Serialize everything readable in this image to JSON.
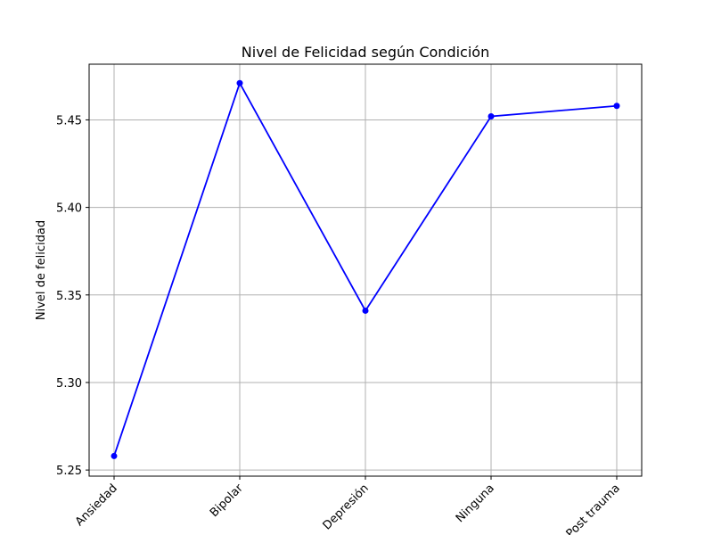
{
  "chart_data": {
    "type": "line",
    "title": "Nivel de Felicidad según Condición",
    "xlabel": "",
    "ylabel": "Nivel de felicidad",
    "categories": [
      "Ansiedad",
      "Bipolar",
      "Depresión",
      "Ninguna",
      "Post trauma"
    ],
    "series": [
      {
        "values": [
          5.258,
          5.471,
          5.341,
          5.452,
          5.458
        ],
        "color": "#0000ff"
      }
    ],
    "y_ticks": [
      "5.25",
      "5.30",
      "5.35",
      "5.40",
      "5.45"
    ],
    "y_tick_values": [
      5.25,
      5.3,
      5.35,
      5.4,
      5.45
    ],
    "ylim": [
      5.2465,
      5.4818
    ],
    "grid": true,
    "x_tick_rotation_deg": 45
  }
}
